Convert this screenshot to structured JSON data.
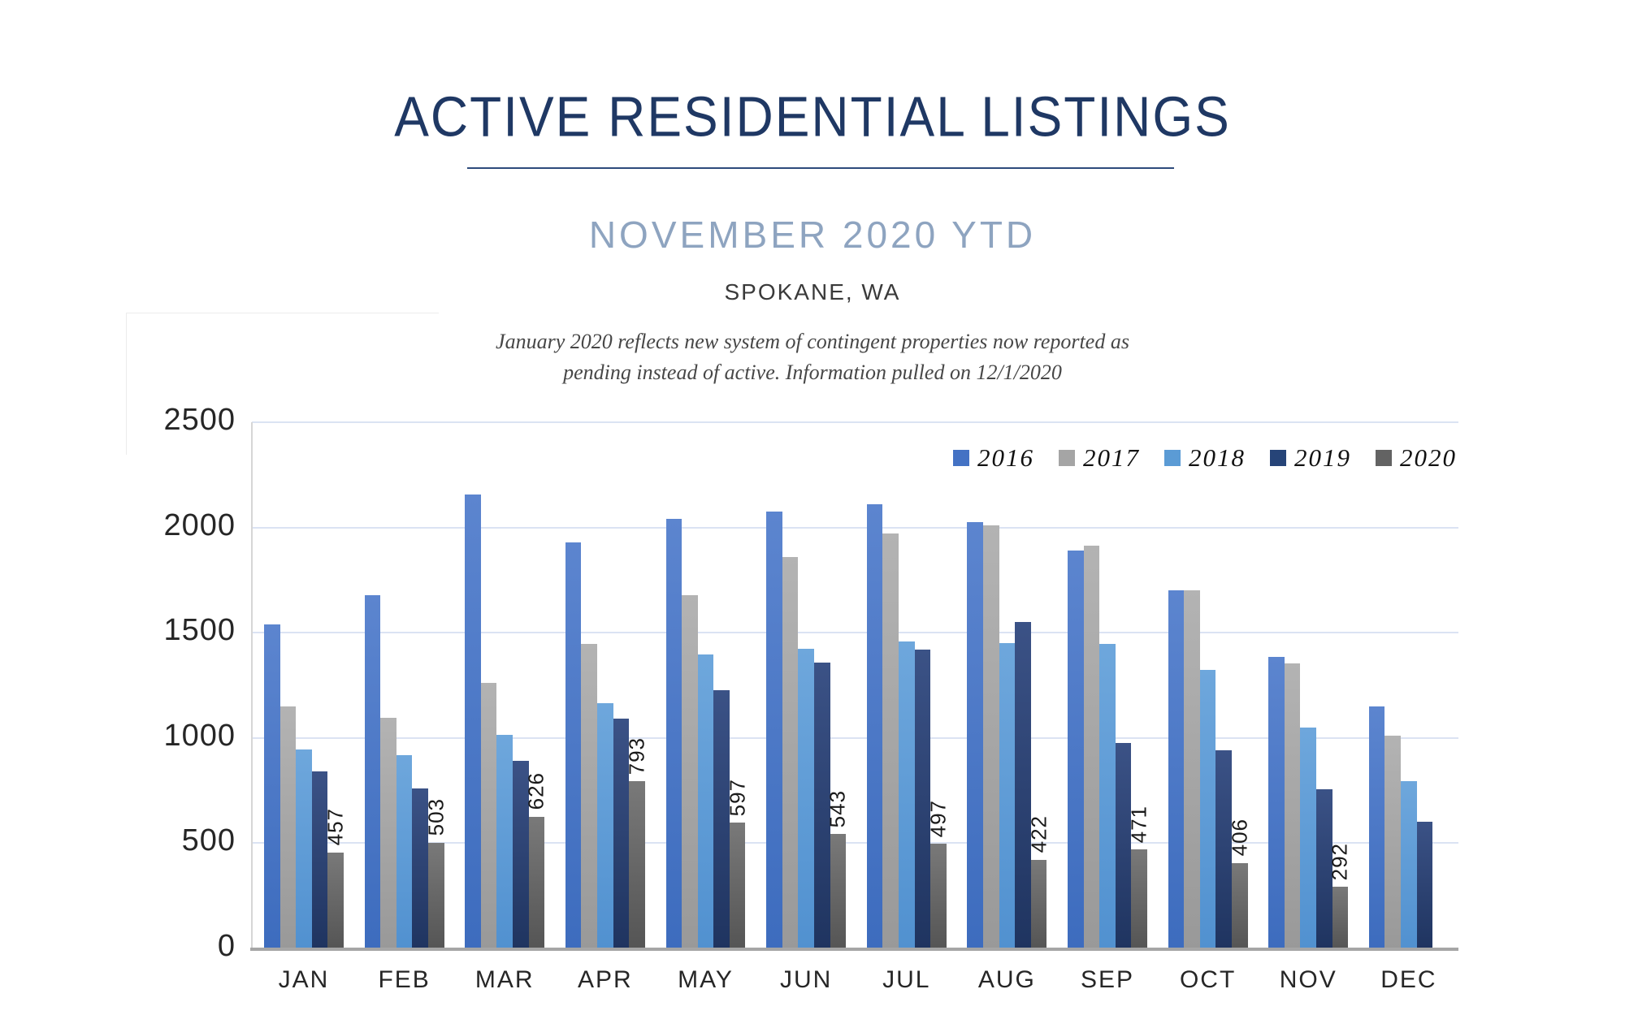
{
  "header": {
    "title": "ACTIVE RESIDENTIAL LISTINGS",
    "subtitle": "NOVEMBER 2020 YTD",
    "location": "SPOKANE, WA",
    "note_line1": "January 2020 reflects new system of contingent properties now reported as",
    "note_line2": "pending instead of active.  Information pulled on 12/1/2020"
  },
  "colors": {
    "title_navy": "#1f3864",
    "subtitle_blue_gray": "#8ea4c0",
    "gridline": "#dbe3f3",
    "axis_line": "#a6a6a6",
    "series": {
      "2016": "#4472c4",
      "2017": "#a5a5a5",
      "2018": "#5b9bd5",
      "2019": "#264478",
      "2020": "#636363"
    }
  },
  "chart_data": {
    "type": "bar",
    "title": "ACTIVE RESIDENTIAL LISTINGS",
    "subtitle": "NOVEMBER 2020 YTD",
    "categories": [
      "JAN",
      "FEB",
      "MAR",
      "APR",
      "MAY",
      "JUN",
      "JUL",
      "AUG",
      "SEP",
      "OCT",
      "NOV",
      "DEC"
    ],
    "series": [
      {
        "name": "2016",
        "values": [
          1540,
          1680,
          2155,
          1930,
          2040,
          2075,
          2110,
          2025,
          1890,
          1700,
          1385,
          1150
        ]
      },
      {
        "name": "2017",
        "values": [
          1150,
          1095,
          1260,
          1445,
          1680,
          1860,
          1970,
          2010,
          1915,
          1700,
          1355,
          1010
        ]
      },
      {
        "name": "2018",
        "values": [
          945,
          920,
          1015,
          1165,
          1395,
          1425,
          1460,
          1450,
          1445,
          1325,
          1050,
          795
        ]
      },
      {
        "name": "2019",
        "values": [
          840,
          760,
          890,
          1090,
          1225,
          1360,
          1420,
          1550,
          975,
          940,
          755,
          600
        ]
      },
      {
        "name": "2020",
        "values": [
          457,
          503,
          626,
          793,
          597,
          543,
          497,
          422,
          471,
          406,
          292,
          null
        ]
      }
    ],
    "data_labels_series": "2020",
    "data_labels": [
      "457",
      "503",
      "626",
      "793",
      "597",
      "543",
      "497",
      "422",
      "471",
      "406",
      "292"
    ],
    "ylim": [
      0,
      2500
    ],
    "yticks": [
      0,
      500,
      1000,
      1500,
      2000,
      2500
    ],
    "grid": true,
    "legend_entries": [
      "2016",
      "2017",
      "2018",
      "2019",
      "2020"
    ],
    "legend_position": "top-right"
  }
}
